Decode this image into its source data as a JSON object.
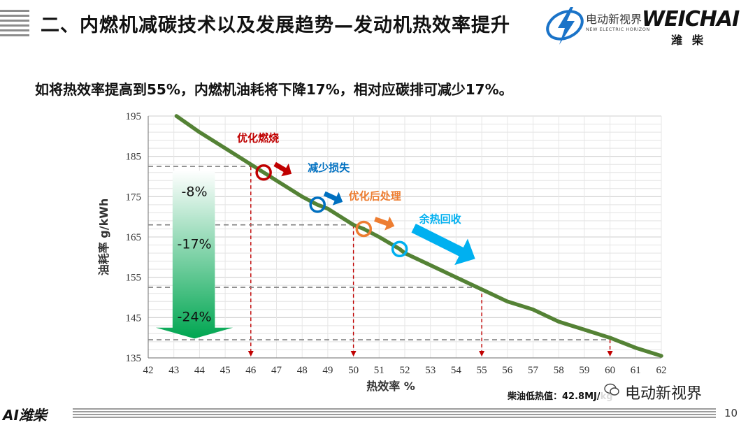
{
  "header": {
    "title": "二、内燃机减碳技术以及发展趋势—发动机热效率提升",
    "logo_left_text": "电动新视界",
    "logo_left_sub": "NEW ELECTRIC HORIZON",
    "logo_right_text": "WEICHAI",
    "logo_right_cn": "潍柴"
  },
  "subtitle": "如将热效率提高到55%，内燃机油耗将下降17%，相对应碳排可减少17%。",
  "footer": {
    "logo": "AI潍柴",
    "page_number": "10"
  },
  "note": "柴油低热值：42.8MJ/kg",
  "watermark": "电动新视界",
  "colors": {
    "curve": "#548235",
    "red": "#c00000",
    "blue": "#0070c0",
    "orange": "#ed7d31",
    "cyan": "#00b0f0",
    "arrow_top": "#ffffff",
    "arrow_bottom": "#00a651"
  },
  "chart_data": {
    "type": "line",
    "xlabel": "热效率 %",
    "ylabel": "油耗率 g/kWh",
    "xlim": [
      42,
      62
    ],
    "ylim": [
      135,
      195
    ],
    "x_ticks": [
      42,
      43,
      44,
      45,
      46,
      47,
      48,
      49,
      50,
      51,
      52,
      53,
      54,
      55,
      56,
      57,
      58,
      59,
      60,
      61,
      62
    ],
    "y_ticks": [
      135,
      145,
      155,
      165,
      175,
      185,
      195
    ],
    "grid": true,
    "series": [
      {
        "x": [
          43.1,
          44,
          45,
          46,
          46.5,
          47,
          48,
          48.6,
          49,
          50,
          50.4,
          51,
          51.8,
          52,
          53,
          54,
          55,
          56,
          57,
          58,
          59,
          60,
          61,
          62
        ],
        "y": [
          195,
          191,
          187,
          183,
          181,
          179,
          175,
          173,
          172,
          168,
          167,
          165,
          162,
          161,
          158,
          155,
          152,
          149,
          147,
          144,
          142,
          140,
          137.5,
          135.5
        ]
      }
    ],
    "markers": [
      {
        "x": 46.5,
        "y": 181,
        "color": "red",
        "label": "优化燃烧"
      },
      {
        "x": 48.6,
        "y": 173,
        "color": "blue",
        "label": "减少损失"
      },
      {
        "x": 50.4,
        "y": 167,
        "color": "orange",
        "label": "优化后处理"
      },
      {
        "x": 51.8,
        "y": 162,
        "color": "cyan",
        "label": "余热回收"
      }
    ],
    "reference_levels": [
      182.5,
      168,
      152.5,
      139.5
    ],
    "reference_x": [
      46,
      50,
      55,
      60
    ],
    "reductions": [
      "-8%",
      "-17%",
      "-24%"
    ]
  }
}
